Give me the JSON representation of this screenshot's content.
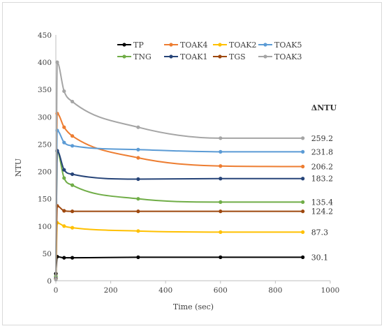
{
  "chart_data": {
    "type": "line",
    "title": "",
    "xlabel": "Time (sec)",
    "ylabel": "NTU",
    "xlim": [
      0,
      1000
    ],
    "ylim": [
      0,
      450
    ],
    "x_ticks": [
      0,
      200,
      400,
      600,
      800,
      1000
    ],
    "y_ticks": [
      0,
      50,
      100,
      150,
      200,
      250,
      300,
      350,
      400,
      450
    ],
    "grid": false,
    "legend_placement": "top-center",
    "legend_order": [
      "TP",
      "TOAK4",
      "TOAK2",
      "TOAK5",
      "TNG",
      "TOAK1",
      "TGS",
      "TOAK3"
    ],
    "delta_header": "ΔNTU",
    "delta_labels": [
      "259.2",
      "231.8",
      "206.2",
      "183.2",
      "135.4",
      "124.2",
      "87.3",
      "30.1"
    ],
    "series": [
      {
        "name": "TP",
        "color": "#000000",
        "x": [
          0,
          5,
          30,
          60,
          300,
          600,
          900
        ],
        "y": [
          13,
          44,
          42,
          42,
          43,
          43,
          43
        ]
      },
      {
        "name": "TOAK4",
        "color": "#ED7D31",
        "x": [
          0,
          5,
          30,
          60,
          300,
          600,
          900
        ],
        "y": [
          4,
          306,
          281,
          265,
          225,
          210,
          209
        ]
      },
      {
        "name": "TOAK2",
        "color": "#FFC000",
        "x": [
          0,
          5,
          30,
          60,
          300,
          600,
          900
        ],
        "y": [
          3,
          106,
          100,
          97,
          91,
          89,
          89
        ]
      },
      {
        "name": "TOAK5",
        "color": "#5B9BD5",
        "x": [
          0,
          5,
          30,
          60,
          300,
          600,
          900
        ],
        "y": [
          5,
          275,
          253,
          247,
          240,
          236,
          236
        ]
      },
      {
        "name": "TNG",
        "color": "#70AD47",
        "x": [
          0,
          5,
          30,
          60,
          300,
          600,
          900
        ],
        "y": [
          8,
          237,
          188,
          175,
          150,
          144,
          144
        ]
      },
      {
        "name": "TOAK1",
        "color": "#264478",
        "x": [
          0,
          5,
          30,
          60,
          300,
          600,
          900
        ],
        "y": [
          4,
          238,
          203,
          195,
          186,
          187,
          187
        ]
      },
      {
        "name": "TGS",
        "color": "#9E480E",
        "x": [
          0,
          5,
          30,
          60,
          300,
          600,
          900
        ],
        "y": [
          3,
          137,
          128,
          127,
          127,
          127,
          127
        ]
      },
      {
        "name": "TOAK3",
        "color": "#A5A5A5",
        "x": [
          0,
          5,
          30,
          60,
          300,
          600,
          900
        ],
        "y": [
          2,
          400,
          347,
          328,
          281,
          261,
          261
        ]
      }
    ]
  }
}
